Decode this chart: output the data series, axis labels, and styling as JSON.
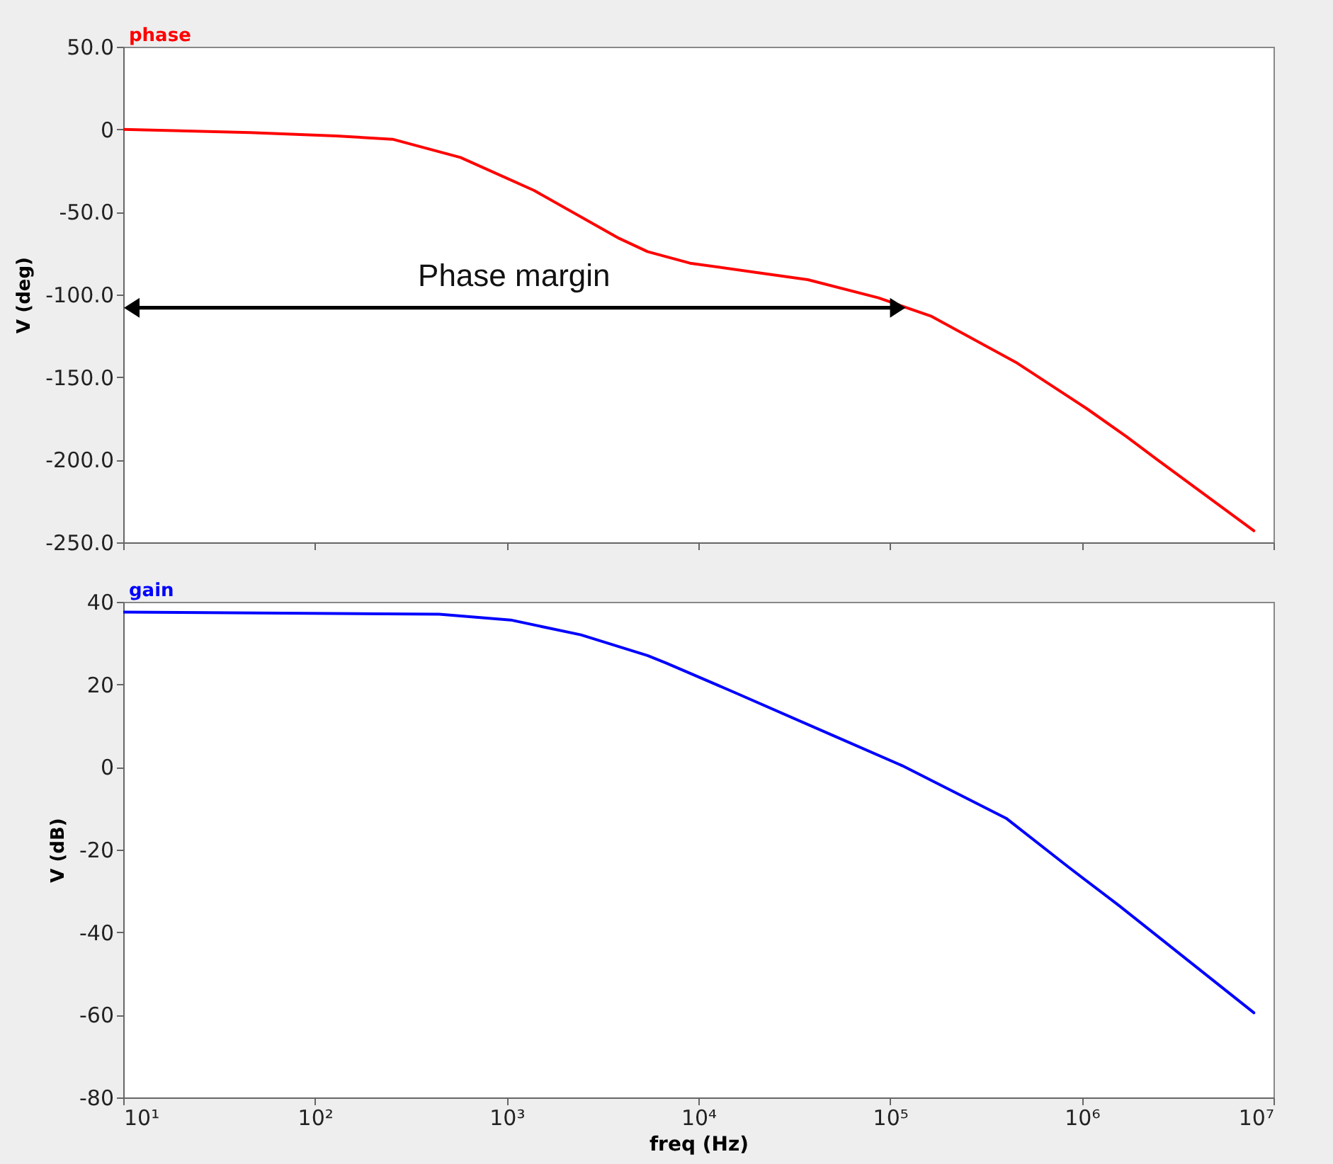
{
  "chart_data": [
    {
      "type": "line",
      "log": "x",
      "ylabel": "V (deg)",
      "tick_labels": "y",
      "xlim": [
        10,
        10000000
      ],
      "xticks": [
        {
          "value": 10,
          "label": null
        },
        {
          "value": 100,
          "label": null
        },
        {
          "value": 1000,
          "label": null
        },
        {
          "value": 10000,
          "label": null
        },
        {
          "value": 100000,
          "label": null
        },
        {
          "value": 1000000,
          "label": null
        },
        {
          "value": 10000000,
          "label": null
        }
      ],
      "ylim": [
        -250,
        50
      ],
      "yticks": [
        {
          "value": 50,
          "label": "50.0"
        },
        0,
        {
          "value": -50,
          "label": "-50.0"
        },
        {
          "value": -100,
          "label": "-100.0"
        },
        {
          "value": -150,
          "label": "-150.0"
        },
        {
          "value": -200,
          "label": "-200.0"
        },
        {
          "value": -250,
          "label": "-250.0"
        }
      ],
      "series": [
        {
          "name": "phase",
          "color": "#ff0000",
          "x": [
            10,
            46,
            129,
            254,
            574,
            1390,
            3860,
            5430,
            9040,
            21200,
            37200,
            86900,
            163000,
            453000,
            1060000,
            1710000,
            2480000,
            7900000
          ],
          "values": [
            0,
            -2,
            -4,
            -6,
            -17,
            -37,
            -66,
            -74,
            -81,
            -87,
            -91,
            -102,
            -113,
            -141,
            -169,
            -186,
            -200,
            -243
          ]
        }
      ],
      "annotations": [
        "Phase margin"
      ]
    },
    {
      "type": "line",
      "log": "x",
      "xlabel": "freq (Hz)",
      "ylabel": "V (dB)",
      "xlim": [
        10,
        10000000
      ],
      "xticks": [
        {
          "value": 10,
          "label": "10¹"
        },
        {
          "value": 100,
          "label": "10²"
        },
        {
          "value": 1000,
          "label": "10³"
        },
        {
          "value": 10000,
          "label": "10⁴"
        },
        {
          "value": 100000,
          "label": "10⁵"
        },
        {
          "value": 1000000,
          "label": "10⁶"
        },
        {
          "value": 10000000,
          "label": "10⁷"
        }
      ],
      "ylim": [
        -80,
        40
      ],
      "yticks": [
        40,
        20,
        0,
        -20,
        -40,
        -60,
        -80
      ],
      "series": [
        {
          "name": "gain",
          "color": "#0000ff",
          "x": [
            10,
            445,
            1050,
            2440,
            5430,
            6780,
            15900,
            50000,
            116000,
            403000,
            851000,
            1570000,
            7900000
          ],
          "values": [
            37.5,
            37,
            35.6,
            32,
            27,
            25.2,
            17.8,
            7.7,
            0.3,
            -12.4,
            -24.2,
            -33.6,
            -59.5
          ]
        }
      ]
    }
  ]
}
